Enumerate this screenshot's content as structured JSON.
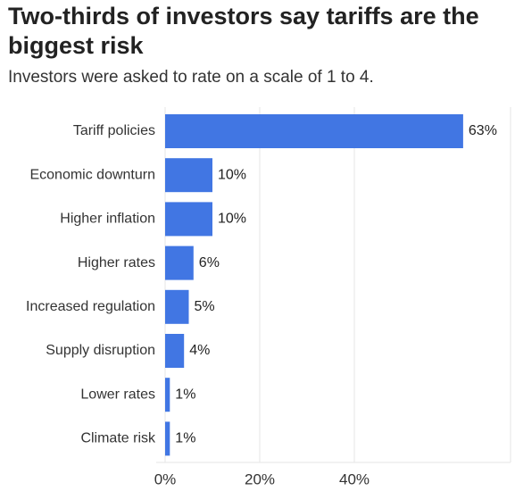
{
  "chart_data": {
    "type": "bar",
    "orientation": "horizontal",
    "title": "Two-thirds of investors say tariffs are the biggest risk",
    "subtitle": "Investors were asked to rate on a scale of 1 to 4.",
    "categories": [
      "Tariff policies",
      "Economic downturn",
      "Higher inflation",
      "Higher rates",
      "Increased regulation",
      "Supply disruption",
      "Lower rates",
      "Climate risk"
    ],
    "values": [
      63,
      10,
      10,
      6,
      5,
      4,
      1,
      1
    ],
    "value_labels": [
      "63%",
      "10%",
      "10%",
      "6%",
      "5%",
      "4%",
      "1%",
      "1%"
    ],
    "x_ticks": [
      0,
      20,
      40
    ],
    "x_tick_labels": [
      "0%",
      "20%",
      "40%"
    ],
    "xlim": [
      0,
      73
    ],
    "grid": true,
    "bar_color": "#4176e3",
    "gridline_color": "#e6e6e6"
  }
}
